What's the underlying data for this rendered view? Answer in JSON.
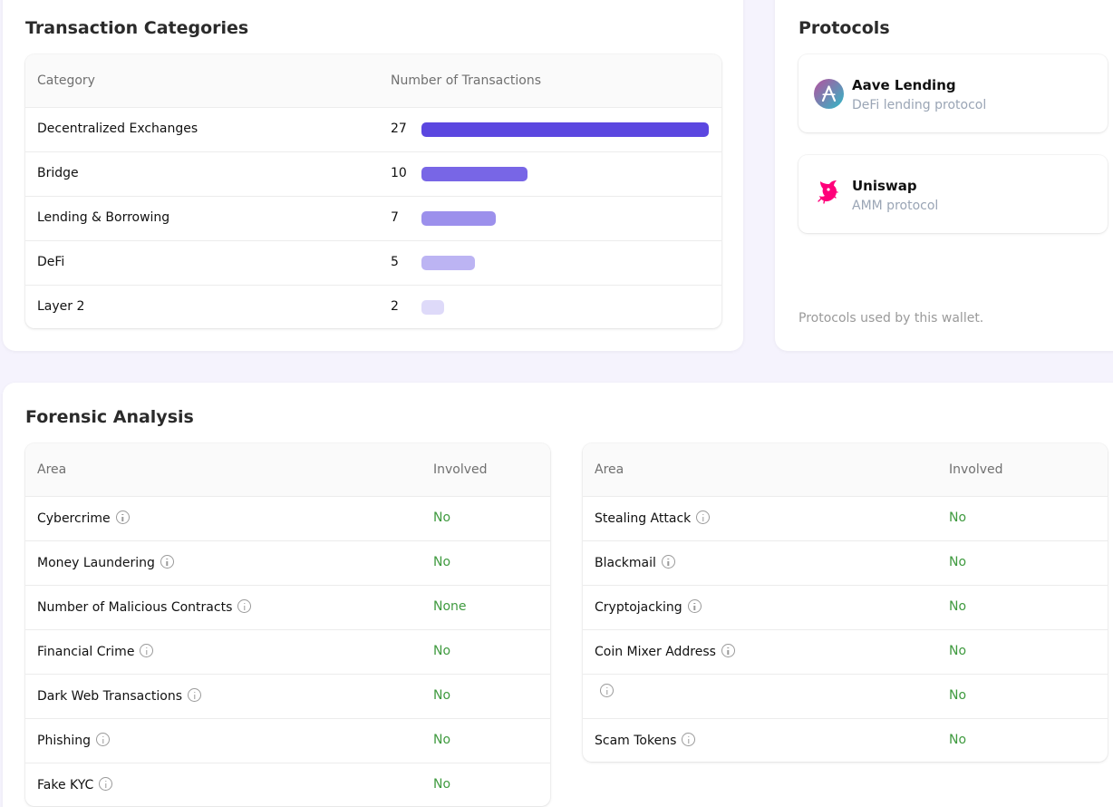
{
  "transaction_categories": {
    "title": "Transaction Categories",
    "columns": [
      "Category",
      "Number of Transactions"
    ],
    "rows": [
      {
        "label": "Decentralized Exchanges",
        "count": "27",
        "value": 27,
        "color": "#5b47e0"
      },
      {
        "label": "Bridge",
        "count": "10",
        "value": 10,
        "color": "#7866e6"
      },
      {
        "label": "Lending & Borrowing",
        "count": "7",
        "value": 7,
        "color": "#9c90ec"
      },
      {
        "label": "DeFi",
        "count": "5",
        "value": 5,
        "color": "#bcb4f3"
      },
      {
        "label": "Layer 2",
        "count": "2",
        "value": 2,
        "color": "#dedaf9"
      }
    ]
  },
  "protocols": {
    "title": "Protocols",
    "items": [
      {
        "name": "Aave Lending",
        "description": "DeFi lending protocol",
        "icon": "aave-logo-icon"
      },
      {
        "name": "Uniswap",
        "description": "AMM protocol",
        "icon": "uniswap-unicorn-icon"
      }
    ],
    "footnote": "Protocols used by this wallet."
  },
  "forensic_analysis": {
    "title": "Forensic Analysis",
    "columns": [
      "Area",
      "Involved"
    ],
    "left_rows": [
      {
        "area": "Cybercrime",
        "involved": "No"
      },
      {
        "area": "Money Laundering",
        "involved": "No"
      },
      {
        "area": "Number of Malicious Contracts",
        "involved": "None"
      },
      {
        "area": "Financial Crime",
        "involved": "No"
      },
      {
        "area": "Dark Web Transactions",
        "involved": "No"
      },
      {
        "area": "Phishing",
        "involved": "No"
      },
      {
        "area": "Fake KYC",
        "involved": "No"
      }
    ],
    "right_rows": [
      {
        "area": "Stealing Attack",
        "involved": "No"
      },
      {
        "area": "Blackmail",
        "involved": "No"
      },
      {
        "area": "Cryptojacking",
        "involved": "No"
      },
      {
        "area": "Coin Mixer Address",
        "involved": "No"
      },
      {
        "area": "",
        "involved": "No"
      },
      {
        "area": "Scam Tokens",
        "involved": "No"
      }
    ],
    "status_color": "#3f9a3f"
  }
}
